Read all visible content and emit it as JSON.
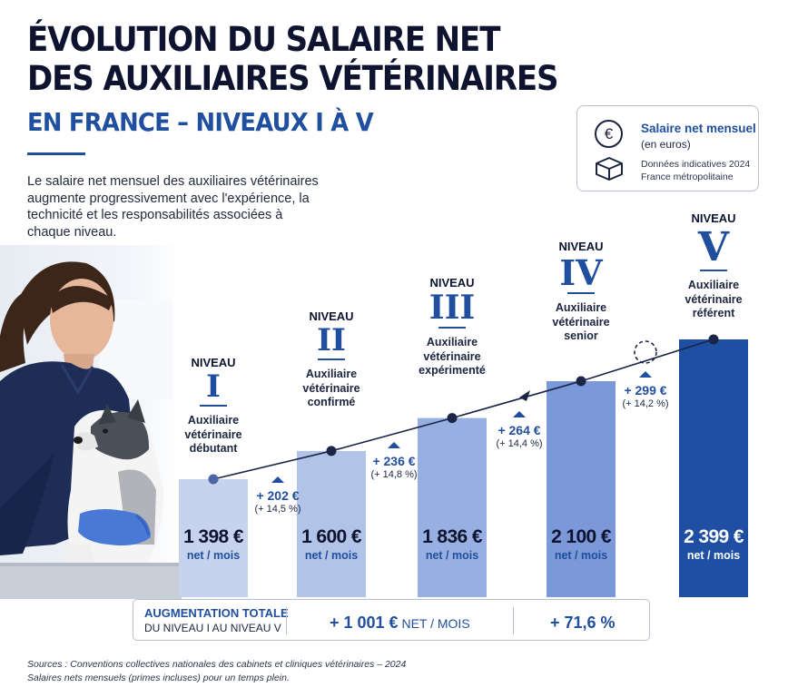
{
  "title_line1": "ÉVOLUTION DU SALAIRE NET",
  "title_line2": "DES AUXILIAIRES VÉTÉRINAIRES",
  "subtitle": "EN FRANCE – NIVEAUX I À V",
  "intro": "Le salaire net mensuel des auxiliaires vétérinaires augmente progressivement avec l'expérience, la technicité et les responsabilités associées à chaque niveau.",
  "legend": {
    "title": "Salaire net mensuel",
    "unit": "(en euros)",
    "note1": "Données indicatives 2024",
    "note2": "France métropolitaine",
    "icons": [
      "euro-icon",
      "box-icon"
    ]
  },
  "level_word": "NIVEAU",
  "unit_label": "net / mois",
  "colors": {
    "title": "#0e1430",
    "accent": "#1f4f9e",
    "bars": [
      "#c7d3ec",
      "#b1c3e7",
      "#97b0e1",
      "#7b98d8",
      "#1f4fa3"
    ],
    "line": "#1b2547"
  },
  "chart_data": {
    "type": "bar",
    "categories": [
      "I",
      "II",
      "III",
      "IV",
      "V"
    ],
    "roles": [
      [
        "Auxiliaire",
        "vétérinaire",
        "débutant"
      ],
      [
        "Auxiliaire",
        "vétérinaire",
        "confirmé"
      ],
      [
        "Auxiliaire",
        "vétérinaire",
        "expérimenté"
      ],
      [
        "Auxiliaire",
        "vétérinaire",
        "senior"
      ],
      [
        "Auxiliaire",
        "vétérinaire",
        "référent"
      ]
    ],
    "values": [
      1398,
      1600,
      1836,
      2100,
      2399
    ],
    "value_labels": [
      "1 398 €",
      "1 600 €",
      "1 836 €",
      "2 100 €",
      "2 399 €"
    ],
    "increases": [
      {
        "amount": "+ 202 €",
        "percent": "(+ 14,5 %)"
      },
      {
        "amount": "+ 236 €",
        "percent": "(+ 14,8 %)"
      },
      {
        "amount": "+ 264 €",
        "percent": "(+ 14,4 %)"
      },
      {
        "amount": "+ 299 €",
        "percent": "(+ 14,2 %)"
      }
    ],
    "trend_line": true
  },
  "total": {
    "label1": "AUGMENTATION TOTALE",
    "label2": "DU NIVEAU I AU NIVEAU V",
    "amount": "+ 1 001 €",
    "amount_suffix": " NET / MOIS",
    "percent": "+ 71,6 %"
  },
  "sources_line1": "Sources : Conventions collectives nationales des cabinets et cliniques vétérinaires – 2024",
  "sources_line2": "Salaires nets mensuels (primes incluses) pour un temps plein."
}
